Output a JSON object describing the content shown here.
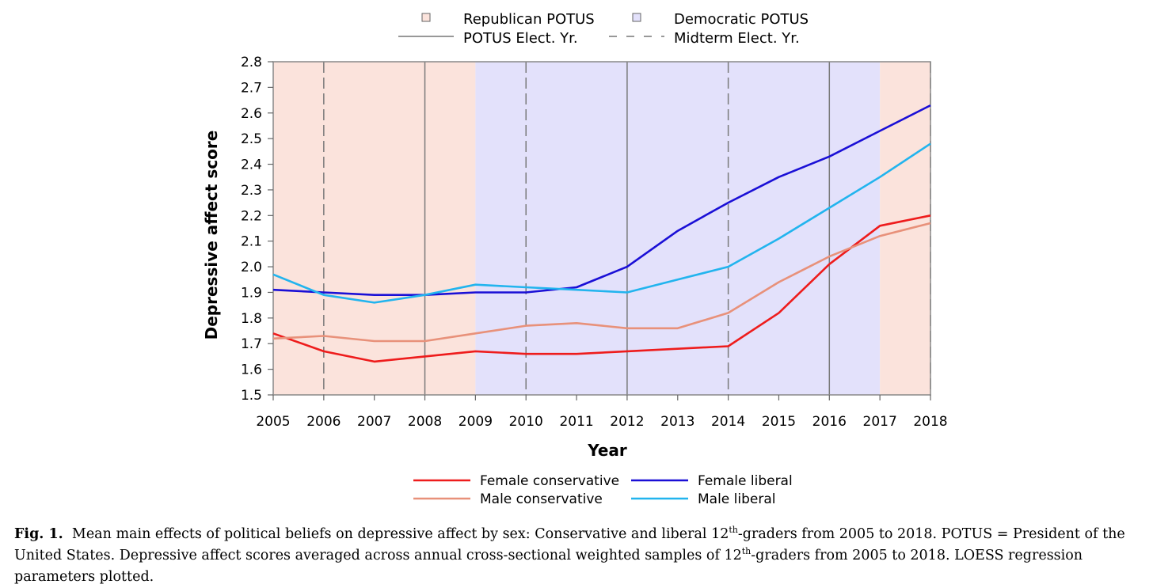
{
  "chart_data": {
    "type": "line",
    "xlabel": "Year",
    "ylabel": "Depressive affect score",
    "ylim": [
      1.5,
      2.8
    ],
    "yticks": [
      "1.5",
      "1.6",
      "1.7",
      "1.8",
      "1.9",
      "2.0",
      "2.1",
      "2.2",
      "2.3",
      "2.4",
      "2.5",
      "2.6",
      "2.7",
      "2.8"
    ],
    "x": [
      2005,
      2006,
      2007,
      2008,
      2009,
      2010,
      2011,
      2012,
      2013,
      2014,
      2015,
      2016,
      2017,
      2018
    ],
    "series": [
      {
        "name": "Female conservative",
        "color": "#ee1c1c",
        "values": [
          1.74,
          1.67,
          1.63,
          1.65,
          1.67,
          1.66,
          1.66,
          1.67,
          1.68,
          1.69,
          1.82,
          2.01,
          2.16,
          2.2
        ]
      },
      {
        "name": "Female liberal",
        "color": "#1a0fd6",
        "values": [
          1.91,
          1.9,
          1.89,
          1.89,
          1.9,
          1.9,
          1.92,
          2.0,
          2.14,
          2.25,
          2.35,
          2.43,
          2.53,
          2.63
        ]
      },
      {
        "name": "Male conservative",
        "color": "#e8917a",
        "values": [
          1.72,
          1.73,
          1.71,
          1.71,
          1.74,
          1.77,
          1.78,
          1.76,
          1.76,
          1.82,
          1.94,
          2.04,
          2.12,
          2.17
        ]
      },
      {
        "name": "Male liberal",
        "color": "#22b4ee",
        "values": [
          1.97,
          1.89,
          1.86,
          1.89,
          1.93,
          1.92,
          1.91,
          1.9,
          1.95,
          2.0,
          2.11,
          2.23,
          2.35,
          2.48
        ]
      }
    ],
    "background_periods": [
      {
        "party": "Republican",
        "from": 2005,
        "to": 2009,
        "color": "#fbe3dc"
      },
      {
        "party": "Democratic",
        "from": 2009,
        "to": 2017,
        "color": "#e3e1fb"
      },
      {
        "party": "Republican",
        "from": 2017,
        "to": 2018,
        "color": "#fbe3dc"
      }
    ],
    "potus_election_years": [
      2008,
      2012,
      2016
    ],
    "midterm_election_years": [
      2006,
      2010,
      2014,
      2018
    ],
    "grid": false,
    "top_legend": {
      "republican": "Republican POTUS",
      "democratic": "Democratic POTUS",
      "potus_elect": "POTUS Elect. Yr.",
      "midterm_elect": "Midterm Elect. Yr."
    },
    "legend_position": "bottom-center"
  },
  "caption": {
    "label": "Fig. 1.",
    "line1_a": "Mean main effects of political beliefs on depressive affect by sex: Conservative and liberal 12",
    "sup1": "th",
    "line1_b": "-graders from 2005 to 2018. POTUS = President of the United States. Depressive affect scores averaged across annual cross-sectional weighted samples of 12",
    "sup2": "th",
    "line1_c": "-graders from 2005 to 2018. LOESS regression parameters plotted."
  }
}
